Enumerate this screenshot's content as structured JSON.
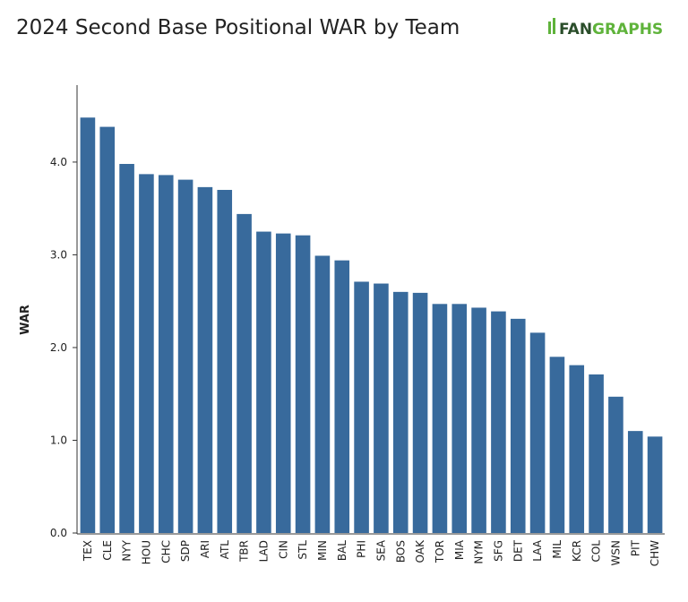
{
  "chart_data": {
    "type": "bar",
    "title": "2024 Second Base Positional WAR by Team",
    "y_label": "WAR",
    "categories": [
      "TEX",
      "CLE",
      "NYY",
      "HOU",
      "CHC",
      "SDP",
      "ARI",
      "ATL",
      "TBR",
      "LAD",
      "CIN",
      "STL",
      "MIN",
      "BAL",
      "PHI",
      "SEA",
      "BOS",
      "OAK",
      "TOR",
      "MIA",
      "NYM",
      "SFG",
      "DET",
      "LAA",
      "MIL",
      "KCR",
      "COL",
      "WSN",
      "PIT",
      "CHW"
    ],
    "values": [
      4.48,
      4.38,
      3.98,
      3.87,
      3.86,
      3.81,
      3.73,
      3.7,
      3.44,
      3.25,
      3.23,
      3.21,
      2.99,
      2.94,
      2.71,
      2.69,
      2.6,
      2.59,
      2.47,
      2.47,
      2.43,
      2.39,
      2.31,
      2.16,
      1.9,
      1.81,
      1.71,
      1.47,
      1.1,
      1.04
    ],
    "color": "#386a9c",
    "ylim": [
      0,
      4.83
    ],
    "yticks": [
      {
        "value": 0,
        "label": "0.0"
      },
      {
        "value": 1,
        "label": "1.0"
      },
      {
        "value": 2,
        "label": "2.0"
      },
      {
        "value": 3,
        "label": "3.0"
      },
      {
        "value": 4,
        "label": "4.0"
      }
    ],
    "grid": false
  },
  "logo": {
    "part1": "FAN",
    "part2": "GRAPHS"
  }
}
